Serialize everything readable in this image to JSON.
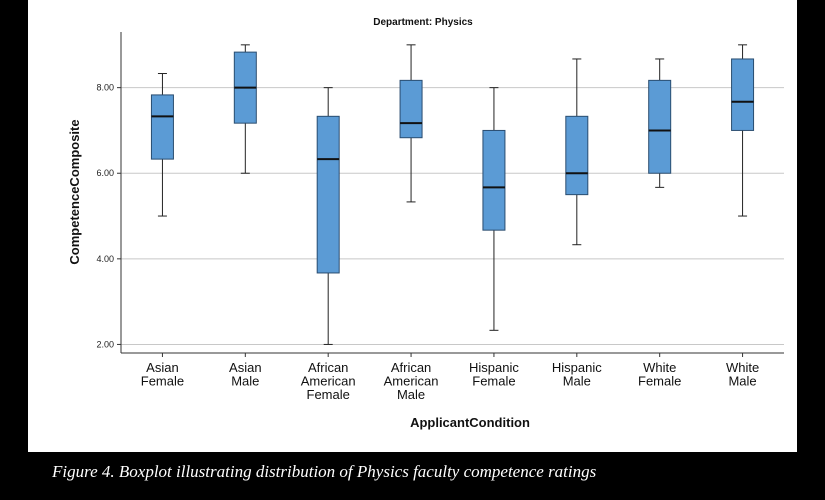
{
  "chart_data": {
    "type": "boxplot",
    "title": "Department: Physics",
    "xlabel": "ApplicantCondition",
    "ylabel": "CompetenceComposite",
    "ylim": [
      1.8,
      9.3
    ],
    "yticks": [
      "2.00",
      "4.00",
      "6.00",
      "8.00"
    ],
    "grid": true,
    "box_color": "#5b9bd5",
    "categories": [
      {
        "label": [
          "Asian",
          "Female"
        ],
        "min": 5.0,
        "q1": 6.33,
        "median": 7.33,
        "q3": 7.83,
        "max": 8.33
      },
      {
        "label": [
          "Asian",
          "Male"
        ],
        "min": 6.0,
        "q1": 7.17,
        "median": 8.0,
        "q3": 8.83,
        "max": 9.0
      },
      {
        "label": [
          "African",
          "American",
          "Female"
        ],
        "min": 2.0,
        "q1": 3.67,
        "median": 6.33,
        "q3": 7.33,
        "max": 8.0
      },
      {
        "label": [
          "African",
          "American",
          "Male"
        ],
        "min": 5.33,
        "q1": 6.83,
        "median": 7.17,
        "q3": 8.17,
        "max": 9.0
      },
      {
        "label": [
          "Hispanic",
          "Female"
        ],
        "min": 2.33,
        "q1": 4.67,
        "median": 5.67,
        "q3": 7.0,
        "max": 8.0
      },
      {
        "label": [
          "Hispanic",
          "Male"
        ],
        "min": 4.33,
        "q1": 5.5,
        "median": 6.0,
        "q3": 7.33,
        "max": 8.67
      },
      {
        "label": [
          "White",
          "Female"
        ],
        "min": 5.67,
        "q1": 6.0,
        "median": 7.0,
        "q3": 8.17,
        "max": 8.67
      },
      {
        "label": [
          "White",
          "Male"
        ],
        "min": 5.0,
        "q1": 7.0,
        "median": 7.67,
        "q3": 8.67,
        "max": 9.0
      }
    ]
  },
  "caption": "Figure 4. Boxplot illustrating distribution of Physics faculty competence ratings"
}
